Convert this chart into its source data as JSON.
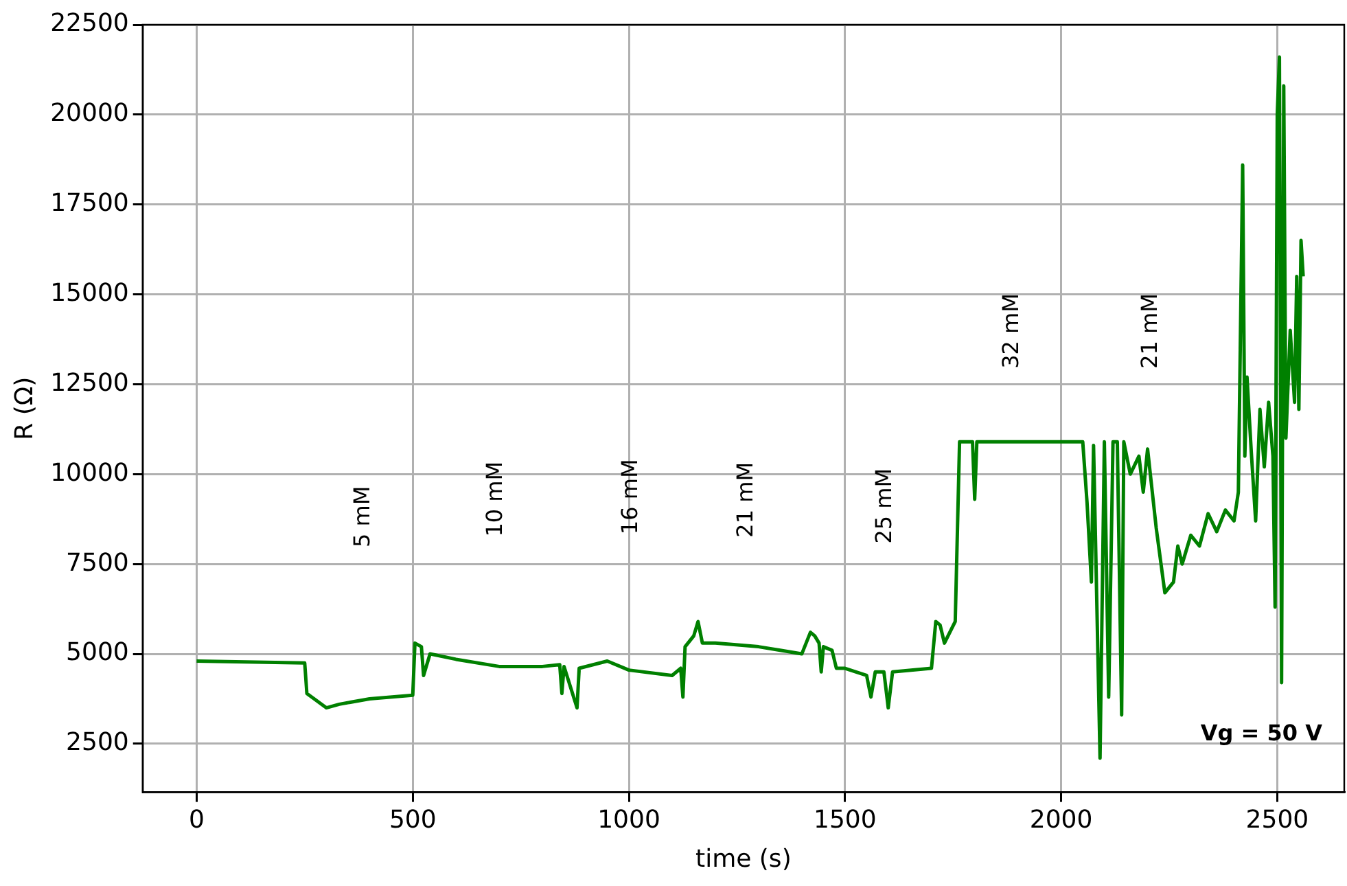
{
  "chart_data": {
    "type": "line",
    "xlabel": "time (s)",
    "ylabel": "R (Ω)",
    "x": [
      0,
      250,
      255,
      300,
      330,
      400,
      500,
      505,
      520,
      525,
      540,
      600,
      700,
      800,
      840,
      845,
      850,
      880,
      885,
      950,
      1000,
      1100,
      1120,
      1125,
      1130,
      1150,
      1160,
      1170,
      1200,
      1300,
      1350,
      1400,
      1420,
      1430,
      1440,
      1445,
      1450,
      1470,
      1480,
      1500,
      1550,
      1560,
      1570,
      1590,
      1600,
      1610,
      1700,
      1710,
      1720,
      1730,
      1755,
      1765,
      1795,
      1800,
      1805,
      2050,
      2060,
      2070,
      2075,
      2090,
      2100,
      2110,
      2120,
      2130,
      2140,
      2145,
      2160,
      2180,
      2190,
      2200,
      2220,
      2240,
      2260,
      2270,
      2280,
      2300,
      2320,
      2340,
      2360,
      2380,
      2400,
      2410,
      2420,
      2425,
      2430,
      2440,
      2450,
      2460,
      2470,
      2480,
      2490,
      2495,
      2500,
      2505,
      2510,
      2515,
      2520,
      2530,
      2540,
      2545,
      2550,
      2555,
      2560
    ],
    "series": [
      {
        "color": "#008000",
        "values": [
          4800,
          4750,
          3900,
          3500,
          3600,
          3750,
          3850,
          5300,
          5200,
          4400,
          5000,
          4850,
          4650,
          4650,
          4700,
          3900,
          4650,
          3500,
          4600,
          4800,
          4550,
          4400,
          4600,
          3800,
          5200,
          5500,
          5900,
          5300,
          5300,
          5200,
          5100,
          5000,
          5600,
          5500,
          5300,
          4500,
          5200,
          5100,
          4600,
          4600,
          4400,
          3800,
          4500,
          4500,
          3500,
          4500,
          4600,
          5900,
          5800,
          5300,
          5900,
          10900,
          10900,
          9300,
          10900,
          10900,
          9200,
          7000,
          10800,
          2100,
          10900,
          3800,
          10900,
          10900,
          3300,
          10900,
          10000,
          10500,
          9500,
          10700,
          8500,
          6700,
          7000,
          8000,
          7500,
          8300,
          8000,
          8900,
          8400,
          9000,
          8700,
          9500,
          18600,
          10500,
          12700,
          10600,
          8700,
          11800,
          10200,
          12000,
          10500,
          6300,
          20000,
          21600,
          4200,
          20800,
          11000,
          14000,
          12000,
          15500,
          11800,
          16500,
          15500
        ]
      }
    ],
    "xlim": [
      -125,
      2655
    ],
    "ylim": [
      1150,
      22500
    ],
    "xticks": [
      0,
      500,
      1000,
      1500,
      2000,
      2500
    ],
    "yticks": [
      2500,
      5000,
      7500,
      10000,
      12500,
      15000,
      17500,
      20000,
      22500
    ],
    "grid": true,
    "marker": "none",
    "line_style": "solid",
    "annotations": [
      "5 mM",
      "10 mM",
      "16 mM",
      "21 mM",
      "25 mM",
      "32 mM",
      "21 mM",
      "Vg = 50 V"
    ]
  }
}
